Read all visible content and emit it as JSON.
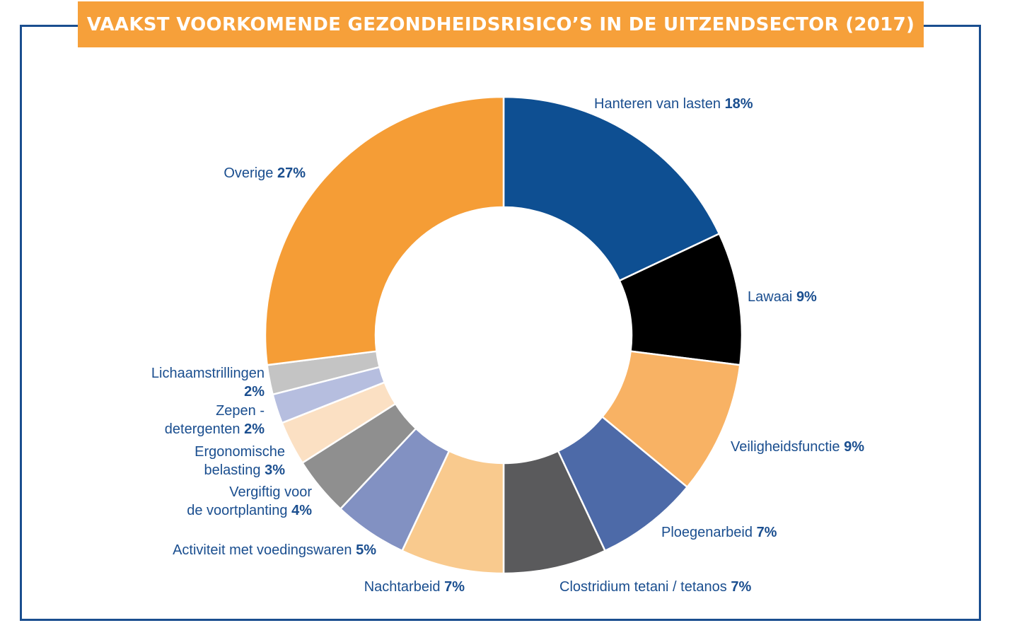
{
  "title": "VAAKST VOORKOMENDE GEZONDHEIDSRISICO’S IN DE UITZENDSECTOR (2017)",
  "colors": {
    "frame": "#1a4e8f",
    "title_bg": "#f6a03a",
    "title_text": "#ffffff",
    "label_text": "#1a4e8f",
    "slice_border": "#ffffff"
  },
  "chart_data": {
    "type": "pie",
    "variant": "donut",
    "unit": "%",
    "slices": [
      {
        "label": "Hanteren van lasten",
        "value": 18,
        "value_label": "18%",
        "color": "#0e4f92"
      },
      {
        "label": "Lawaai",
        "value": 9,
        "value_label": "9%",
        "color": "#000000"
      },
      {
        "label": "Veiligheidsfunctie",
        "value": 9,
        "value_label": "9%",
        "color": "#f8b264"
      },
      {
        "label": "Ploegenarbeid",
        "value": 7,
        "value_label": "7%",
        "color": "#4d6aa8"
      },
      {
        "label": "Clostridium tetani / tetanos",
        "value": 7,
        "value_label": "7%",
        "color": "#5a5a5c"
      },
      {
        "label": "Nachtarbeid",
        "value": 7,
        "value_label": "7%",
        "color": "#f9ca8e"
      },
      {
        "label": "Activiteit met voedingswaren",
        "value": 5,
        "value_label": "5%",
        "color": "#8291c2"
      },
      {
        "label": "Vergiftig voor de voortplanting",
        "value": 4,
        "value_label": "4%",
        "color": "#8f8f8f"
      },
      {
        "label": "Ergonomische belasting",
        "value": 3,
        "value_label": "3%",
        "color": "#fbe0c3"
      },
      {
        "label": "Zepen - detergenten",
        "value": 2,
        "value_label": "2%",
        "color": "#b6bedf"
      },
      {
        "label": "Lichaamstrillingen",
        "value": 2,
        "value_label": "2%",
        "color": "#c4c4c4"
      },
      {
        "label": "Overige",
        "value": 27,
        "value_label": "27%",
        "color": "#f59d36"
      }
    ],
    "legend": "none",
    "labels": "outside"
  }
}
